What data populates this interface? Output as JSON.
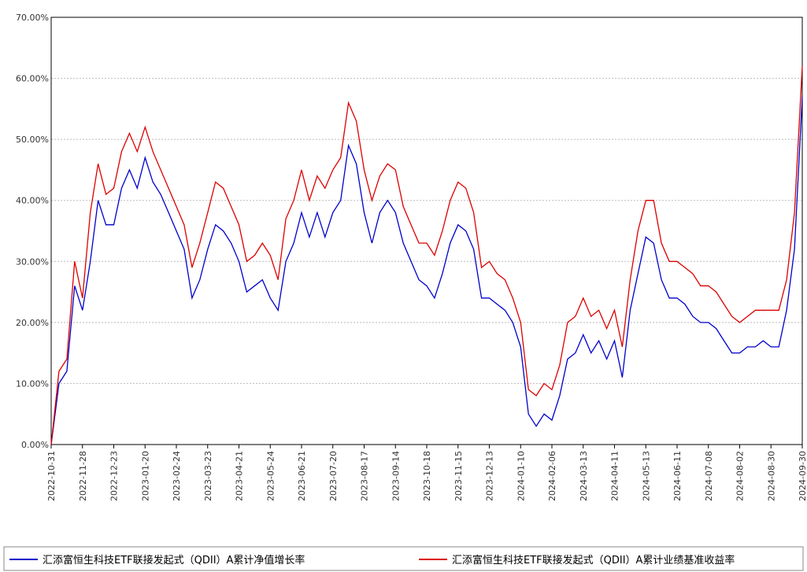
{
  "chart_data": {
    "type": "line",
    "categories": [
      "2022-10-31",
      null,
      null,
      null,
      "2022-11-28",
      null,
      null,
      null,
      "2022-12-23",
      null,
      null,
      null,
      "2023-01-20",
      null,
      null,
      null,
      "2023-02-24",
      null,
      null,
      null,
      "2023-03-23",
      null,
      null,
      null,
      "2023-04-21",
      null,
      null,
      null,
      "2023-05-24",
      null,
      null,
      null,
      "2023-06-21",
      null,
      null,
      null,
      "2023-07-20",
      null,
      null,
      null,
      "2023-08-17",
      null,
      null,
      null,
      "2023-09-14",
      null,
      null,
      null,
      "2023-10-18",
      null,
      null,
      null,
      "2023-11-15",
      null,
      null,
      null,
      "2023-12-13",
      null,
      null,
      null,
      "2024-01-10",
      null,
      null,
      null,
      "2024-02-06",
      null,
      null,
      null,
      "2024-03-13",
      null,
      null,
      null,
      "2024-04-11",
      null,
      null,
      null,
      "2024-05-13",
      null,
      null,
      null,
      "2024-06-11",
      null,
      null,
      null,
      "2024-07-08",
      null,
      null,
      null,
      "2024-08-02",
      null,
      null,
      null,
      "2024-08-30",
      null,
      null,
      null,
      "2024-09-30"
    ],
    "series": [
      {
        "name": "汇添富恒生科技ETF联接发起式（QDII）A累计净值增长率",
        "color": "#0000cc",
        "values": [
          0,
          10,
          12,
          26,
          22,
          30,
          40,
          36,
          36,
          42,
          45,
          42,
          47,
          43,
          41,
          38,
          35,
          32,
          24,
          27,
          32,
          36,
          35,
          33,
          30,
          25,
          26,
          27,
          24,
          22,
          30,
          33,
          38,
          34,
          38,
          34,
          38,
          40,
          49,
          46,
          38,
          33,
          38,
          40,
          38,
          33,
          30,
          27,
          26,
          24,
          28,
          33,
          36,
          35,
          32,
          24,
          24,
          23,
          22,
          20,
          16,
          5,
          3,
          5,
          4,
          8,
          14,
          15,
          18,
          15,
          17,
          14,
          17,
          11,
          22,
          28,
          34,
          33,
          27,
          24,
          24,
          23,
          21,
          20,
          20,
          19,
          17,
          15,
          15,
          16,
          16,
          17,
          16,
          16,
          22,
          32,
          57
        ]
      },
      {
        "name": "汇添富恒生科技ETF联接发起式（QDII）A累计业绩基准收益率",
        "color": "#dd0000",
        "values": [
          0,
          12,
          14,
          30,
          24,
          38,
          46,
          41,
          42,
          48,
          51,
          48,
          52,
          48,
          45,
          42,
          39,
          36,
          29,
          33,
          38,
          43,
          42,
          39,
          36,
          30,
          31,
          33,
          31,
          27,
          37,
          40,
          45,
          40,
          44,
          42,
          45,
          47,
          56,
          53,
          45,
          40,
          44,
          46,
          45,
          39,
          36,
          33,
          33,
          31,
          35,
          40,
          43,
          42,
          38,
          29,
          30,
          28,
          27,
          24,
          20,
          9,
          8,
          10,
          9,
          13,
          20,
          21,
          24,
          21,
          22,
          19,
          22,
          16,
          27,
          35,
          40,
          40,
          33,
          30,
          30,
          29,
          28,
          26,
          26,
          25,
          23,
          21,
          20,
          21,
          22,
          22,
          22,
          22,
          27,
          38,
          62
        ]
      }
    ],
    "ylim": [
      0,
      70
    ],
    "yticks": [
      {
        "value": 0,
        "label": "0.00%"
      },
      {
        "value": 10,
        "label": "10.00%"
      },
      {
        "value": 20,
        "label": "20.00%"
      },
      {
        "value": 30,
        "label": "30.00%"
      },
      {
        "value": 40,
        "label": "40.00%"
      },
      {
        "value": 50,
        "label": "50.00%"
      },
      {
        "value": 60,
        "label": "60.00%"
      },
      {
        "value": 70,
        "label": "70.00%"
      }
    ],
    "grid": true
  }
}
